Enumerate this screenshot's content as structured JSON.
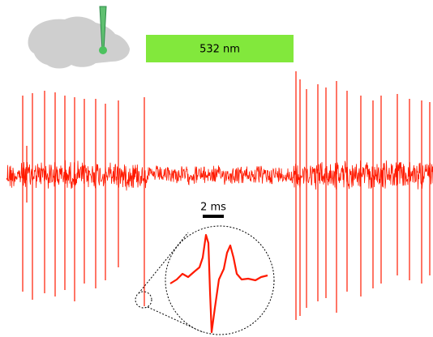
{
  "light_bar": {
    "label": "532 nm"
  },
  "scale_bar": {
    "label": "2 ms"
  }
}
